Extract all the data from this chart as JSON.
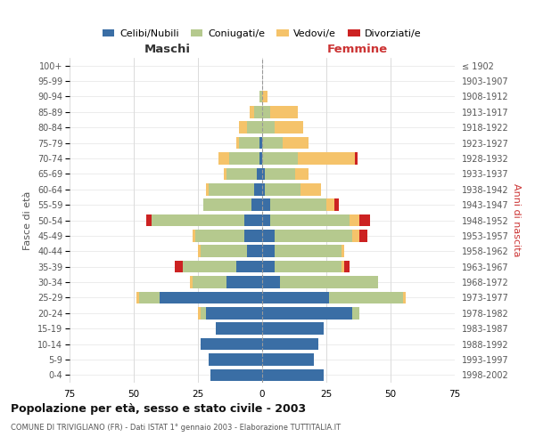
{
  "age_groups": [
    "0-4",
    "5-9",
    "10-14",
    "15-19",
    "20-24",
    "25-29",
    "30-34",
    "35-39",
    "40-44",
    "45-49",
    "50-54",
    "55-59",
    "60-64",
    "65-69",
    "70-74",
    "75-79",
    "80-84",
    "85-89",
    "90-94",
    "95-99",
    "100+"
  ],
  "birth_years": [
    "1998-2002",
    "1993-1997",
    "1988-1992",
    "1983-1987",
    "1978-1982",
    "1973-1977",
    "1968-1972",
    "1963-1967",
    "1958-1962",
    "1953-1957",
    "1948-1952",
    "1943-1947",
    "1938-1942",
    "1933-1937",
    "1928-1932",
    "1923-1927",
    "1918-1922",
    "1913-1917",
    "1908-1912",
    "1903-1907",
    "≤ 1902"
  ],
  "maschi": {
    "celibi": [
      20,
      21,
      24,
      18,
      22,
      40,
      14,
      10,
      6,
      7,
      7,
      4,
      3,
      2,
      1,
      1,
      0,
      0,
      0,
      0,
      0
    ],
    "coniugati": [
      0,
      0,
      0,
      0,
      2,
      8,
      13,
      21,
      18,
      19,
      36,
      19,
      18,
      12,
      12,
      8,
      6,
      3,
      1,
      0,
      0
    ],
    "vedovi": [
      0,
      0,
      0,
      0,
      1,
      1,
      1,
      0,
      1,
      1,
      0,
      0,
      1,
      1,
      4,
      1,
      3,
      2,
      0,
      0,
      0
    ],
    "divorziati": [
      0,
      0,
      0,
      0,
      0,
      0,
      0,
      3,
      0,
      0,
      2,
      0,
      0,
      0,
      0,
      0,
      0,
      0,
      0,
      0,
      0
    ]
  },
  "femmine": {
    "nubili": [
      24,
      20,
      22,
      24,
      35,
      26,
      7,
      5,
      5,
      5,
      3,
      3,
      1,
      1,
      0,
      0,
      0,
      0,
      0,
      0,
      0
    ],
    "coniugate": [
      0,
      0,
      0,
      0,
      3,
      29,
      38,
      26,
      26,
      30,
      31,
      22,
      14,
      12,
      14,
      8,
      5,
      3,
      0,
      0,
      0
    ],
    "vedove": [
      0,
      0,
      0,
      0,
      0,
      1,
      0,
      1,
      1,
      3,
      4,
      3,
      8,
      5,
      22,
      10,
      11,
      11,
      2,
      0,
      0
    ],
    "divorziate": [
      0,
      0,
      0,
      0,
      0,
      0,
      0,
      2,
      0,
      3,
      4,
      2,
      0,
      0,
      1,
      0,
      0,
      0,
      0,
      0,
      0
    ]
  },
  "colors": {
    "celibi_nubili": "#3a6ea5",
    "coniugati": "#b5c98e",
    "vedovi": "#f5c36a",
    "divorziati": "#cc2222"
  },
  "xlim": 75,
  "title": "Popolazione per età, sesso e stato civile - 2003",
  "subtitle": "COMUNE DI TRIVIGLIANO (FR) - Dati ISTAT 1° gennaio 2003 - Elaborazione TUTTITALIA.IT",
  "ylabel_left": "Fasce di età",
  "ylabel_right": "Anni di nascita",
  "xlabel_left": "Maschi",
  "xlabel_right": "Femmine"
}
